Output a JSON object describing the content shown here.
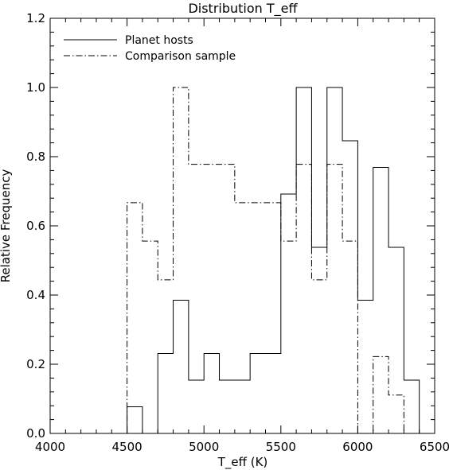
{
  "chart_data": {
    "type": "histogram-step",
    "title": "Distribution T_eff",
    "xlabel": "T_eff (K)",
    "ylabel": "Relative Frequency",
    "xlim": [
      4000,
      6500
    ],
    "ylim": [
      0.0,
      1.2
    ],
    "xticks": [
      4000,
      4500,
      5000,
      5500,
      6000,
      6500
    ],
    "yticks": [
      0.0,
      0.2,
      0.4,
      0.6,
      0.8,
      1.0,
      1.2
    ],
    "grid": false,
    "legend_position": "top-left",
    "series": [
      {
        "name": "Planet hosts",
        "linestyle": "solid",
        "edges": [
          4500,
          4600,
          4700,
          4800,
          4900,
          5000,
          5100,
          5200,
          5300,
          5400,
          5500,
          5600,
          5700,
          5800,
          5900,
          6000,
          6100,
          6200,
          6300,
          6400
        ],
        "values": [
          0.077,
          0.0,
          0.231,
          0.385,
          0.154,
          0.231,
          0.154,
          0.154,
          0.231,
          0.231,
          0.692,
          1.0,
          0.538,
          1.0,
          0.846,
          0.385,
          0.769,
          0.538,
          0.154
        ]
      },
      {
        "name": "Comparison sample",
        "linestyle": "dashdot",
        "edges": [
          4500,
          4600,
          4700,
          4800,
          4900,
          5000,
          5100,
          5200,
          5300,
          5400,
          5500,
          5600,
          5700,
          5800,
          5900,
          6000,
          6100,
          6200,
          6300
        ],
        "values": [
          0.667,
          0.556,
          0.444,
          1.0,
          0.778,
          0.778,
          0.778,
          0.667,
          0.667,
          0.667,
          0.556,
          0.778,
          0.444,
          0.778,
          0.556,
          0.0,
          0.222,
          0.111
        ]
      }
    ]
  }
}
